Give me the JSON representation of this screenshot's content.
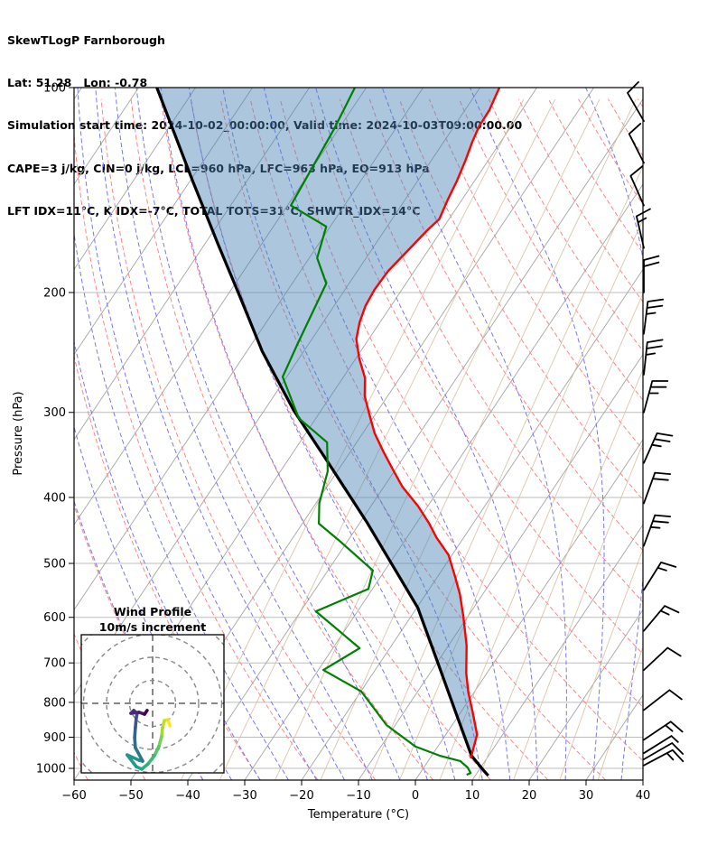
{
  "header": {
    "title": "SkewTLogP Farnborough",
    "location": "Lat: 51.28   Lon: -0.78",
    "times": "Simulation start time: 2024-10-02_00:00:00, Valid time: 2024-10-03T09:00:00.00",
    "indices1": "CAPE=3 j/kg, CIN=0 j/kg, LCL=960 hPa, LFC=963 hPa, EQ=913 hPa",
    "indices2": "LFT IDX=11°C, K IDX=-7°C, TOTAL TOTS=31°C, SHWTR_IDX=14°C"
  },
  "chart_data": {
    "type": "line",
    "title": "SkewTLogP Farnborough",
    "xlabel": "Temperature (°C)",
    "ylabel": "Pressure (hPa)",
    "x_axis": {
      "min": -60,
      "max": 40,
      "ticks": [
        -60,
        -50,
        -40,
        -30,
        -20,
        -10,
        0,
        10,
        20,
        30,
        40
      ]
    },
    "y_axis": {
      "scale": "log",
      "top": 100,
      "bottom": 1040,
      "ticks": [
        100,
        200,
        300,
        400,
        500,
        600,
        700,
        800,
        900,
        1000
      ]
    },
    "skew_degC_per_decade": 80,
    "grid": true,
    "background_lines": {
      "isotherms": {
        "color": "#a5a5a5",
        "step_degC": 10,
        "style": "solid"
      },
      "isobars": {
        "color": "#bdbdbd",
        "style": "solid"
      },
      "dry_adiabats": {
        "color": "#ff8585",
        "style": "dashed",
        "theta_min": -60,
        "theta_max": 170,
        "step": 10
      },
      "moist_adiabats": {
        "color": "#7878ee",
        "style": "dashed",
        "t1000_min": -40,
        "t1000_max": 40,
        "step": 5
      },
      "mixing_ratio": {
        "color": "#d8bb9d",
        "style": "solid",
        "values_g_kg": [
          0.1,
          0.2,
          0.5,
          1,
          2,
          3,
          5,
          8,
          12,
          20,
          30
        ]
      }
    },
    "shading": {
      "between": [
        "parcel",
        "temperature"
      ],
      "color": "rgba(70,130,180,0.45)"
    },
    "series": [
      {
        "name": "temperature",
        "color": "#ff0000",
        "width": 2.4,
        "points": [
          [
            100,
            -66.6
          ],
          [
            108,
            -65.7
          ],
          [
            114,
            -65.6
          ],
          [
            120,
            -65.0
          ],
          [
            128,
            -64.0
          ],
          [
            137,
            -63.1
          ],
          [
            146,
            -62.5
          ],
          [
            156,
            -61.7
          ],
          [
            162,
            -62.5
          ],
          [
            173,
            -63.5
          ],
          [
            186,
            -64.6
          ],
          [
            198,
            -64.8
          ],
          [
            209,
            -64.5
          ],
          [
            221,
            -63.6
          ],
          [
            234,
            -62.2
          ],
          [
            250,
            -59.4
          ],
          [
            267,
            -56.1
          ],
          [
            284,
            -54.0
          ],
          [
            303,
            -50.9
          ],
          [
            322,
            -47.9
          ],
          [
            342,
            -44.3
          ],
          [
            363,
            -40.6
          ],
          [
            386,
            -36.7
          ],
          [
            412,
            -31.7
          ],
          [
            437,
            -27.7
          ],
          [
            458,
            -24.8
          ],
          [
            486,
            -20.6
          ],
          [
            523,
            -16.9
          ],
          [
            555,
            -14.0
          ],
          [
            598,
            -10.8
          ],
          [
            660,
            -6.8
          ],
          [
            725,
            -3.6
          ],
          [
            773,
            -1.0
          ],
          [
            825,
            2.0
          ],
          [
            892,
            5.5
          ],
          [
            967,
            7.2
          ]
        ]
      },
      {
        "name": "dewpoint",
        "color": "#008000",
        "width": 2.2,
        "points": [
          [
            100,
            -92.0
          ],
          [
            115,
            -90.8
          ],
          [
            149,
            -89.4
          ],
          [
            160,
            -80.7
          ],
          [
            178,
            -78.6
          ],
          [
            194,
            -74.0
          ],
          [
            237,
            -72.0
          ],
          [
            266,
            -70.7
          ],
          [
            306,
            -63.0
          ],
          [
            332,
            -55.2
          ],
          [
            366,
            -51.7
          ],
          [
            408,
            -49.4
          ],
          [
            437,
            -47.1
          ],
          [
            462,
            -41.7
          ],
          [
            512,
            -32.1
          ],
          [
            545,
            -30.7
          ],
          [
            588,
            -37.3
          ],
          [
            666,
            -25.3
          ],
          [
            717,
            -29.1
          ],
          [
            771,
            -19.9
          ],
          [
            864,
            -11.5
          ],
          [
            929,
            -3.9
          ],
          [
            958,
            1.4
          ],
          [
            976,
            5.7
          ],
          [
            997,
            7.7
          ],
          [
            1016,
            8.9
          ],
          [
            1022,
            8.4
          ]
        ]
      },
      {
        "name": "parcel",
        "color": "#000000",
        "width": 3.2,
        "points": [
          [
            100,
            -126.8
          ],
          [
            137,
            -109.6
          ],
          [
            170,
            -97.6
          ],
          [
            204,
            -87.3
          ],
          [
            244,
            -77.3
          ],
          [
            298,
            -64.8
          ],
          [
            350,
            -53.7
          ],
          [
            437,
            -38.5
          ],
          [
            581,
            -19.8
          ],
          [
            700,
            -9.8
          ],
          [
            830,
            -0.7
          ],
          [
            958,
            7.0
          ],
          [
            1006,
            10.8
          ],
          [
            1025,
            12.3
          ]
        ]
      }
    ],
    "wind_barbs": {
      "position": "right-edge",
      "units": "m/s",
      "full_barb": 10,
      "half_barb": 5,
      "barbs": [
        {
          "p": 112,
          "angle": -30,
          "full": 1,
          "half": 0
        },
        {
          "p": 129,
          "angle": -27,
          "full": 1,
          "half": 0
        },
        {
          "p": 149,
          "angle": -24,
          "full": 1,
          "half": 0
        },
        {
          "p": 172,
          "angle": -13,
          "full": 1,
          "half": 1
        },
        {
          "p": 200,
          "angle": 0,
          "full": 2,
          "half": 0
        },
        {
          "p": 230,
          "angle": 7,
          "full": 2,
          "half": 1
        },
        {
          "p": 264,
          "angle": 6,
          "full": 2,
          "half": 1
        },
        {
          "p": 300,
          "angle": 15,
          "full": 2,
          "half": 1
        },
        {
          "p": 356,
          "angle": 24,
          "full": 2,
          "half": 1
        },
        {
          "p": 408,
          "angle": 20,
          "full": 2,
          "half": 0
        },
        {
          "p": 471,
          "angle": 20,
          "full": 2,
          "half": 1
        },
        {
          "p": 547,
          "angle": 32,
          "full": 1,
          "half": 1
        },
        {
          "p": 628,
          "angle": 40,
          "full": 1,
          "half": 1
        },
        {
          "p": 717,
          "angle": 47,
          "full": 1,
          "half": 0
        },
        {
          "p": 821,
          "angle": 52,
          "full": 1,
          "half": 0
        },
        {
          "p": 908,
          "angle": 56,
          "full": 1,
          "half": 1
        },
        {
          "p": 950,
          "angle": 58,
          "full": 0,
          "half": 1
        },
        {
          "p": 970,
          "angle": 60,
          "full": 1,
          "half": 0
        },
        {
          "p": 990,
          "angle": 62,
          "full": 1,
          "half": 1
        }
      ]
    },
    "hodograph": {
      "title": "Wind Profile",
      "subtitle": "10m/s increment",
      "ring_interval_ms": 10,
      "rings_ms": [
        10,
        20,
        30,
        40
      ],
      "trace_uv_ms": [
        [
          7.5,
          -9.8
        ],
        [
          6.7,
          -7.1
        ],
        [
          5.1,
          -7.5
        ],
        [
          4.3,
          -10.6
        ],
        [
          3.9,
          -14.5
        ],
        [
          2.7,
          -18.8
        ],
        [
          0.8,
          -22.7
        ],
        [
          -2.0,
          -26.3
        ],
        [
          -4.7,
          -28.6
        ],
        [
          -7.1,
          -27.5
        ],
        [
          -11.0,
          -22.4
        ],
        [
          -5.9,
          -24.7
        ],
        [
          -4.3,
          -25.1
        ],
        [
          -7.5,
          -19.2
        ],
        [
          -7.8,
          -14.9
        ],
        [
          -7.5,
          -10.6
        ],
        [
          -7.1,
          -6.3
        ],
        [
          -6.7,
          -4.3
        ],
        [
          -8.2,
          -3.1
        ],
        [
          -9.4,
          -4.3
        ],
        [
          -5.9,
          -3.9
        ],
        [
          -3.5,
          -4.7
        ],
        [
          -2.4,
          -3.1
        ]
      ],
      "trace_palette": [
        "#fde725",
        "#e5e419",
        "#c2df23",
        "#a0da39",
        "#7ad151",
        "#54c568",
        "#3bbb75",
        "#2ab07f",
        "#22a884",
        "#219c89",
        "#23958d",
        "#268f8d",
        "#2a788e",
        "#2e6d8e",
        "#33628d",
        "#38578c",
        "#3d4e8a",
        "#424186",
        "#463480",
        "#472a7a",
        "#471d6e",
        "#440154"
      ]
    }
  }
}
